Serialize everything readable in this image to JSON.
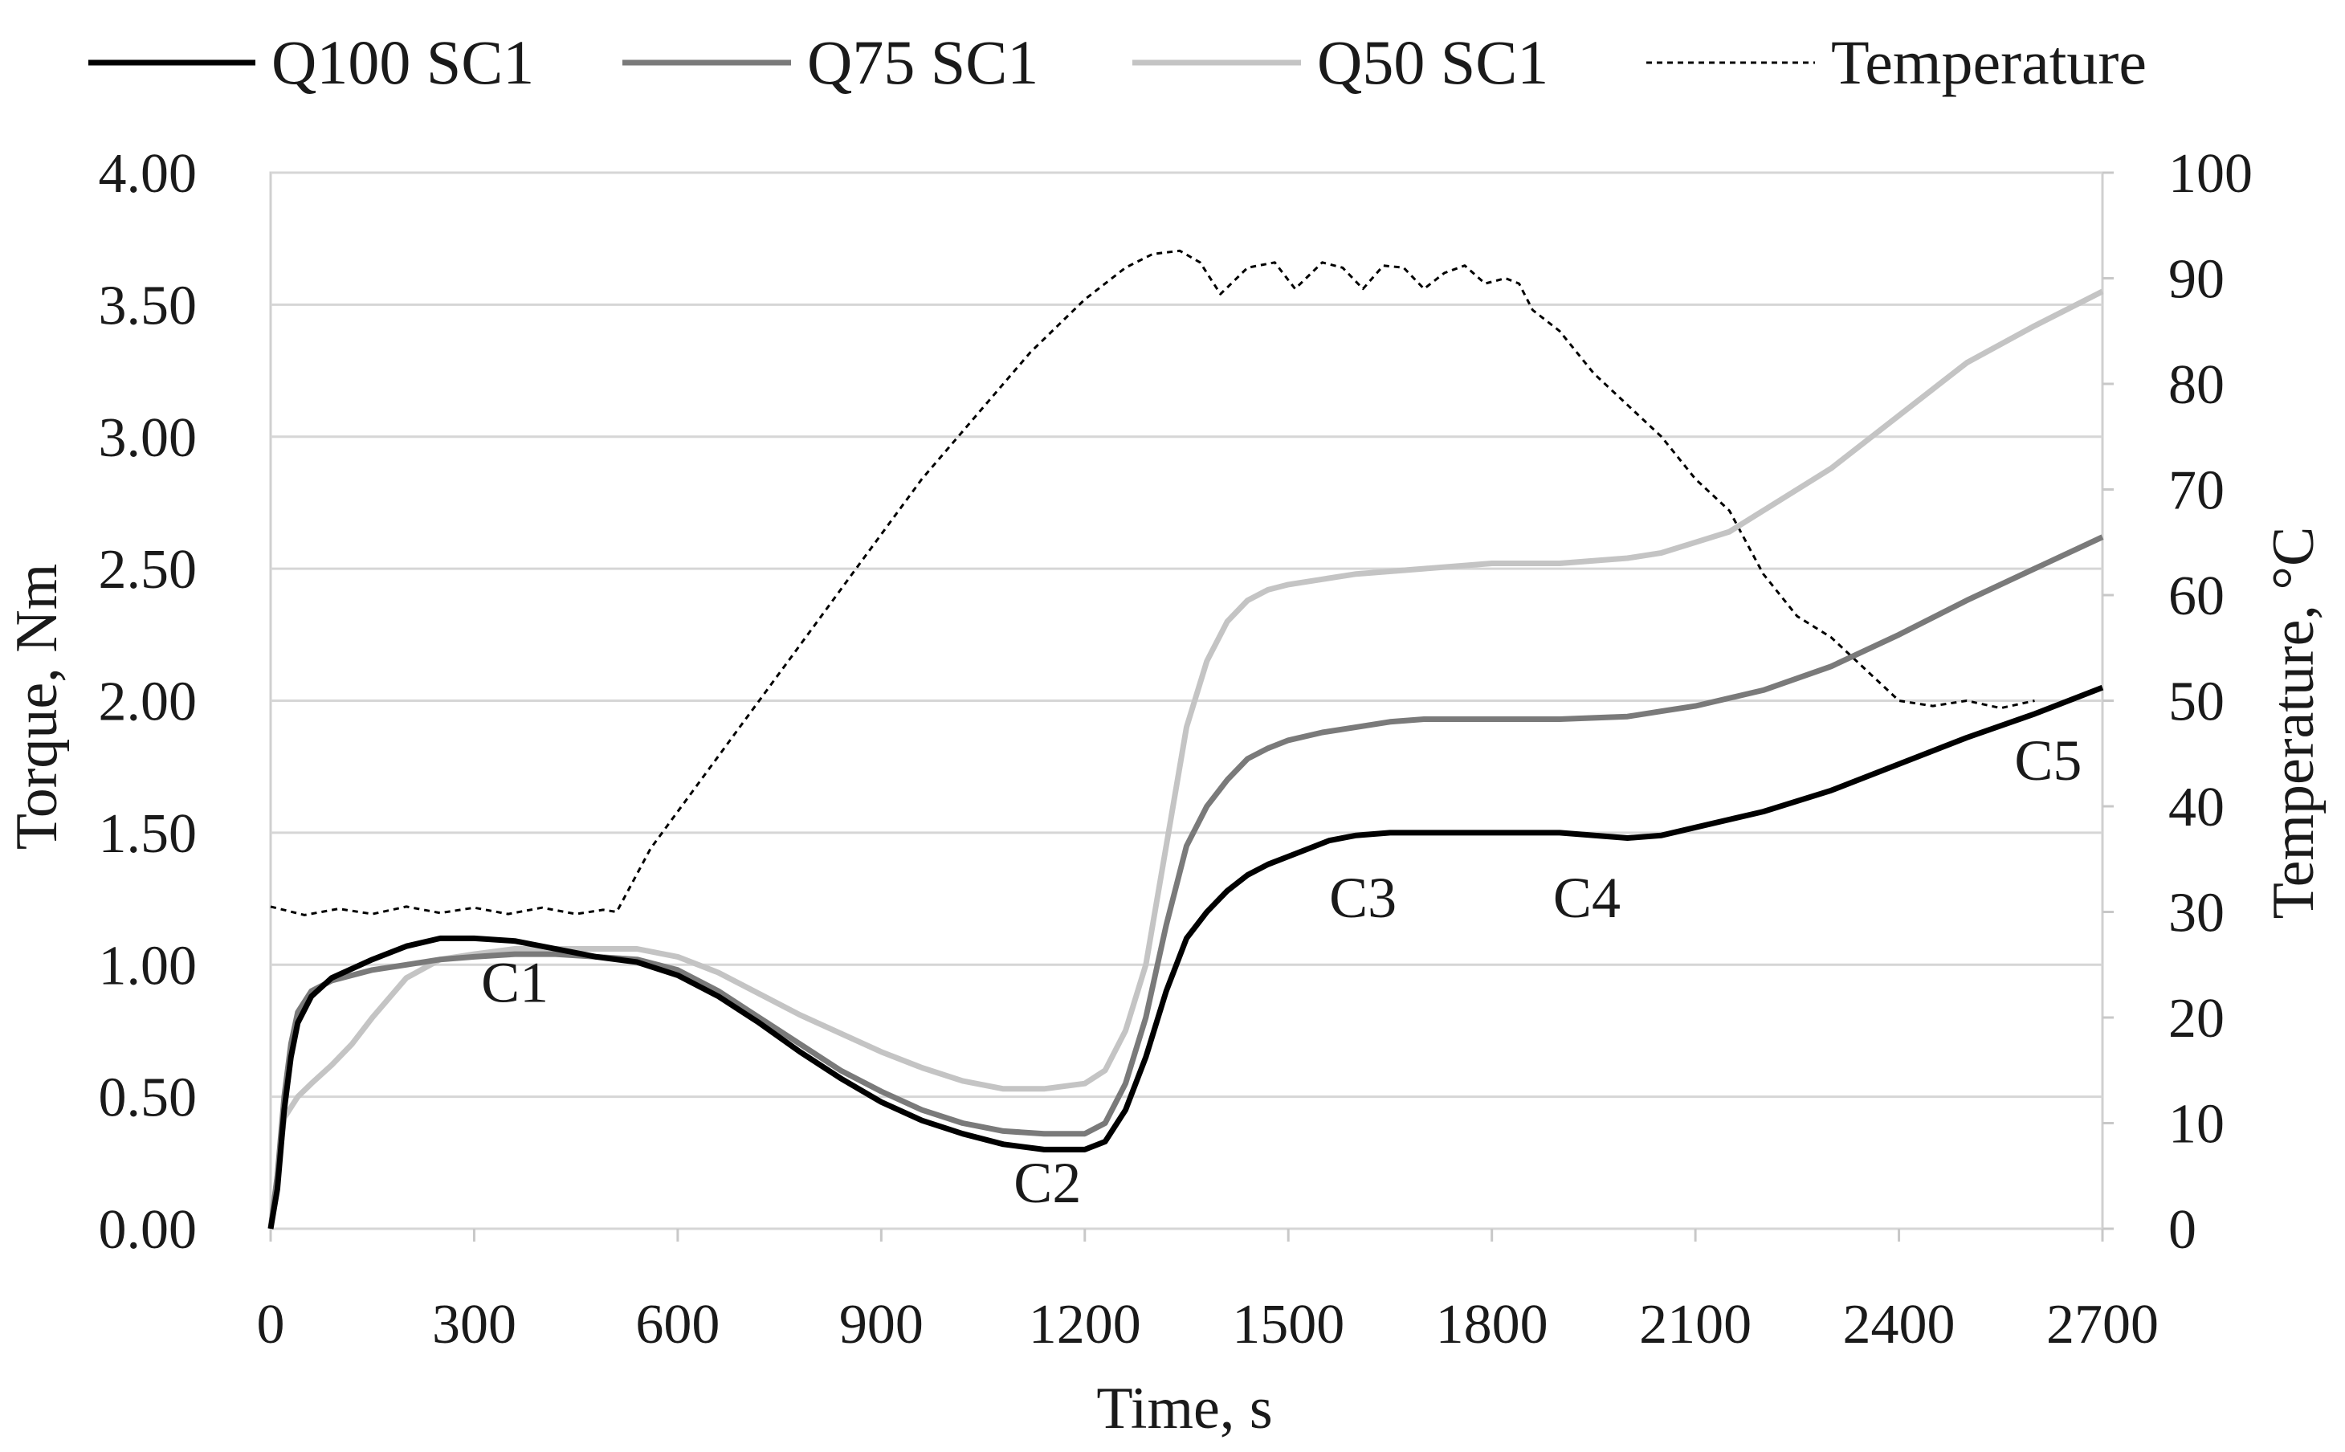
{
  "chart_data": {
    "type": "line",
    "title": "",
    "xlabel": "Time, s",
    "ylabel": "Torque, Nm",
    "y2label": "Temperature, °C",
    "xlim": [
      0,
      2700
    ],
    "ylim": [
      0,
      4
    ],
    "y2lim": [
      0,
      100
    ],
    "grid": true,
    "legend_position": "top",
    "x_ticks": [
      "0",
      "300",
      "600",
      "900",
      "1200",
      "1500",
      "1800",
      "2100",
      "2400",
      "2700"
    ],
    "y_ticks": [
      "0.00",
      "0.50",
      "1.00",
      "1.50",
      "2.00",
      "2.50",
      "3.00",
      "3.50",
      "4.00"
    ],
    "y2_ticks": [
      "0",
      "10",
      "20",
      "30",
      "40",
      "50",
      "60",
      "70",
      "80",
      "90",
      "100"
    ],
    "series": [
      {
        "name": "Q100 SC1",
        "axis": "left",
        "color": "#000000",
        "style": "solid",
        "points": [
          [
            0,
            0
          ],
          [
            10,
            0.15
          ],
          [
            20,
            0.45
          ],
          [
            30,
            0.65
          ],
          [
            40,
            0.78
          ],
          [
            60,
            0.88
          ],
          [
            90,
            0.95
          ],
          [
            150,
            1.02
          ],
          [
            200,
            1.07
          ],
          [
            250,
            1.1
          ],
          [
            300,
            1.1
          ],
          [
            360,
            1.09
          ],
          [
            420,
            1.06
          ],
          [
            480,
            1.03
          ],
          [
            540,
            1.01
          ],
          [
            600,
            0.96
          ],
          [
            660,
            0.88
          ],
          [
            720,
            0.78
          ],
          [
            780,
            0.67
          ],
          [
            840,
            0.57
          ],
          [
            900,
            0.48
          ],
          [
            960,
            0.41
          ],
          [
            1020,
            0.36
          ],
          [
            1080,
            0.32
          ],
          [
            1140,
            0.3
          ],
          [
            1200,
            0.3
          ],
          [
            1230,
            0.33
          ],
          [
            1260,
            0.45
          ],
          [
            1290,
            0.65
          ],
          [
            1320,
            0.9
          ],
          [
            1350,
            1.1
          ],
          [
            1380,
            1.2
          ],
          [
            1410,
            1.28
          ],
          [
            1440,
            1.34
          ],
          [
            1470,
            1.38
          ],
          [
            1500,
            1.41
          ],
          [
            1530,
            1.44
          ],
          [
            1560,
            1.47
          ],
          [
            1600,
            1.49
          ],
          [
            1650,
            1.5
          ],
          [
            1700,
            1.5
          ],
          [
            1800,
            1.5
          ],
          [
            1900,
            1.5
          ],
          [
            2000,
            1.48
          ],
          [
            2050,
            1.49
          ],
          [
            2100,
            1.52
          ],
          [
            2200,
            1.58
          ],
          [
            2300,
            1.66
          ],
          [
            2400,
            1.76
          ],
          [
            2500,
            1.86
          ],
          [
            2600,
            1.95
          ],
          [
            2700,
            2.05
          ]
        ]
      },
      {
        "name": "Q75 SC1",
        "axis": "left",
        "color": "#7a7a7a",
        "style": "solid",
        "points": [
          [
            0,
            0
          ],
          [
            10,
            0.2
          ],
          [
            20,
            0.5
          ],
          [
            30,
            0.7
          ],
          [
            40,
            0.82
          ],
          [
            60,
            0.9
          ],
          [
            90,
            0.94
          ],
          [
            150,
            0.98
          ],
          [
            200,
            1.0
          ],
          [
            250,
            1.02
          ],
          [
            300,
            1.03
          ],
          [
            360,
            1.04
          ],
          [
            420,
            1.04
          ],
          [
            480,
            1.03
          ],
          [
            540,
            1.02
          ],
          [
            600,
            0.98
          ],
          [
            660,
            0.9
          ],
          [
            720,
            0.8
          ],
          [
            780,
            0.7
          ],
          [
            840,
            0.6
          ],
          [
            900,
            0.52
          ],
          [
            960,
            0.45
          ],
          [
            1020,
            0.4
          ],
          [
            1080,
            0.37
          ],
          [
            1140,
            0.36
          ],
          [
            1200,
            0.36
          ],
          [
            1230,
            0.4
          ],
          [
            1260,
            0.55
          ],
          [
            1290,
            0.8
          ],
          [
            1320,
            1.15
          ],
          [
            1350,
            1.45
          ],
          [
            1380,
            1.6
          ],
          [
            1410,
            1.7
          ],
          [
            1440,
            1.78
          ],
          [
            1470,
            1.82
          ],
          [
            1500,
            1.85
          ],
          [
            1550,
            1.88
          ],
          [
            1600,
            1.9
          ],
          [
            1650,
            1.92
          ],
          [
            1700,
            1.93
          ],
          [
            1800,
            1.93
          ],
          [
            1900,
            1.93
          ],
          [
            2000,
            1.94
          ],
          [
            2050,
            1.96
          ],
          [
            2100,
            1.98
          ],
          [
            2200,
            2.04
          ],
          [
            2300,
            2.13
          ],
          [
            2400,
            2.25
          ],
          [
            2500,
            2.38
          ],
          [
            2600,
            2.5
          ],
          [
            2700,
            2.62
          ]
        ]
      },
      {
        "name": "Q50 SC1",
        "axis": "left",
        "color": "#c4c4c4",
        "style": "solid",
        "points": [
          [
            0,
            0
          ],
          [
            10,
            0.2
          ],
          [
            20,
            0.42
          ],
          [
            40,
            0.5
          ],
          [
            60,
            0.55
          ],
          [
            90,
            0.62
          ],
          [
            120,
            0.7
          ],
          [
            150,
            0.8
          ],
          [
            200,
            0.95
          ],
          [
            250,
            1.02
          ],
          [
            300,
            1.04
          ],
          [
            360,
            1.06
          ],
          [
            420,
            1.06
          ],
          [
            480,
            1.06
          ],
          [
            540,
            1.06
          ],
          [
            600,
            1.03
          ],
          [
            660,
            0.97
          ],
          [
            720,
            0.89
          ],
          [
            780,
            0.81
          ],
          [
            840,
            0.74
          ],
          [
            900,
            0.67
          ],
          [
            960,
            0.61
          ],
          [
            1020,
            0.56
          ],
          [
            1080,
            0.53
          ],
          [
            1140,
            0.53
          ],
          [
            1200,
            0.55
          ],
          [
            1230,
            0.6
          ],
          [
            1260,
            0.75
          ],
          [
            1290,
            1.0
          ],
          [
            1320,
            1.45
          ],
          [
            1350,
            1.9
          ],
          [
            1380,
            2.15
          ],
          [
            1410,
            2.3
          ],
          [
            1440,
            2.38
          ],
          [
            1470,
            2.42
          ],
          [
            1500,
            2.44
          ],
          [
            1550,
            2.46
          ],
          [
            1600,
            2.48
          ],
          [
            1700,
            2.5
          ],
          [
            1800,
            2.52
          ],
          [
            1900,
            2.52
          ],
          [
            2000,
            2.54
          ],
          [
            2050,
            2.56
          ],
          [
            2100,
            2.6
          ],
          [
            2150,
            2.64
          ],
          [
            2200,
            2.72
          ],
          [
            2300,
            2.88
          ],
          [
            2400,
            3.08
          ],
          [
            2500,
            3.28
          ],
          [
            2600,
            3.42
          ],
          [
            2700,
            3.55
          ]
        ]
      },
      {
        "name": "Temperature",
        "axis": "right",
        "color": "#000000",
        "style": "dotted",
        "points": [
          [
            0,
            30.5
          ],
          [
            50,
            29.7
          ],
          [
            100,
            30.3
          ],
          [
            150,
            29.8
          ],
          [
            200,
            30.5
          ],
          [
            250,
            29.9
          ],
          [
            300,
            30.4
          ],
          [
            350,
            29.8
          ],
          [
            400,
            30.4
          ],
          [
            450,
            29.8
          ],
          [
            490,
            30.2
          ],
          [
            510,
            30.0
          ],
          [
            560,
            36
          ],
          [
            640,
            43
          ],
          [
            720,
            50
          ],
          [
            800,
            57
          ],
          [
            880,
            64
          ],
          [
            960,
            71
          ],
          [
            1040,
            77
          ],
          [
            1120,
            83
          ],
          [
            1200,
            88
          ],
          [
            1260,
            91
          ],
          [
            1300,
            92.3
          ],
          [
            1340,
            92.6
          ],
          [
            1370,
            91.5
          ],
          [
            1400,
            88.5
          ],
          [
            1440,
            91
          ],
          [
            1480,
            91.5
          ],
          [
            1510,
            89
          ],
          [
            1550,
            91.5
          ],
          [
            1580,
            91
          ],
          [
            1610,
            89
          ],
          [
            1640,
            91.2
          ],
          [
            1670,
            91
          ],
          [
            1700,
            89
          ],
          [
            1730,
            90.5
          ],
          [
            1760,
            91.2
          ],
          [
            1790,
            89.5
          ],
          [
            1820,
            90
          ],
          [
            1840,
            89.5
          ],
          [
            1860,
            87
          ],
          [
            1900,
            85
          ],
          [
            1950,
            81
          ],
          [
            2000,
            78
          ],
          [
            2050,
            75
          ],
          [
            2100,
            71
          ],
          [
            2150,
            68
          ],
          [
            2200,
            62
          ],
          [
            2250,
            58
          ],
          [
            2300,
            56
          ],
          [
            2350,
            53
          ],
          [
            2400,
            50
          ],
          [
            2450,
            49.5
          ],
          [
            2500,
            50
          ],
          [
            2550,
            49.3
          ],
          [
            2600,
            50
          ]
        ]
      }
    ],
    "annotations": [
      {
        "text": "C1",
        "x": 360,
        "y": 0.86
      },
      {
        "text": "C2",
        "x": 1145,
        "y": 0.1
      },
      {
        "text": "C3",
        "x": 1610,
        "y": 1.18
      },
      {
        "text": "C4",
        "x": 1940,
        "y": 1.18
      },
      {
        "text": "C5",
        "x": 2620,
        "y": 1.7
      }
    ]
  }
}
